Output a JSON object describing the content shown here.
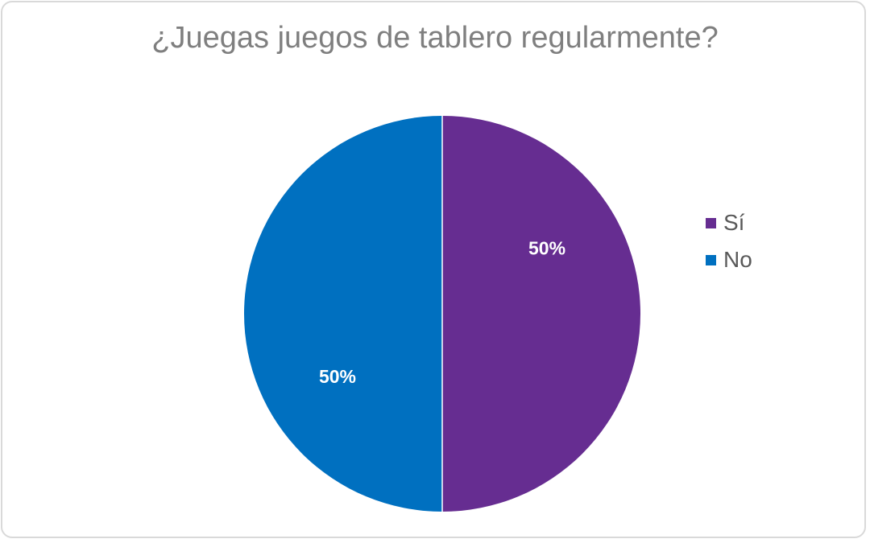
{
  "chart_data": {
    "type": "pie",
    "title": "¿Juegas juegos de tablero regularmente?",
    "categories": [
      "Sí",
      "No"
    ],
    "values": [
      50,
      50
    ],
    "data_labels": [
      "50%",
      "50%"
    ],
    "colors": [
      "#662d91",
      "#0070c0"
    ],
    "legend_position": "right",
    "start_angle_deg": 0,
    "direction": "clockwise"
  }
}
